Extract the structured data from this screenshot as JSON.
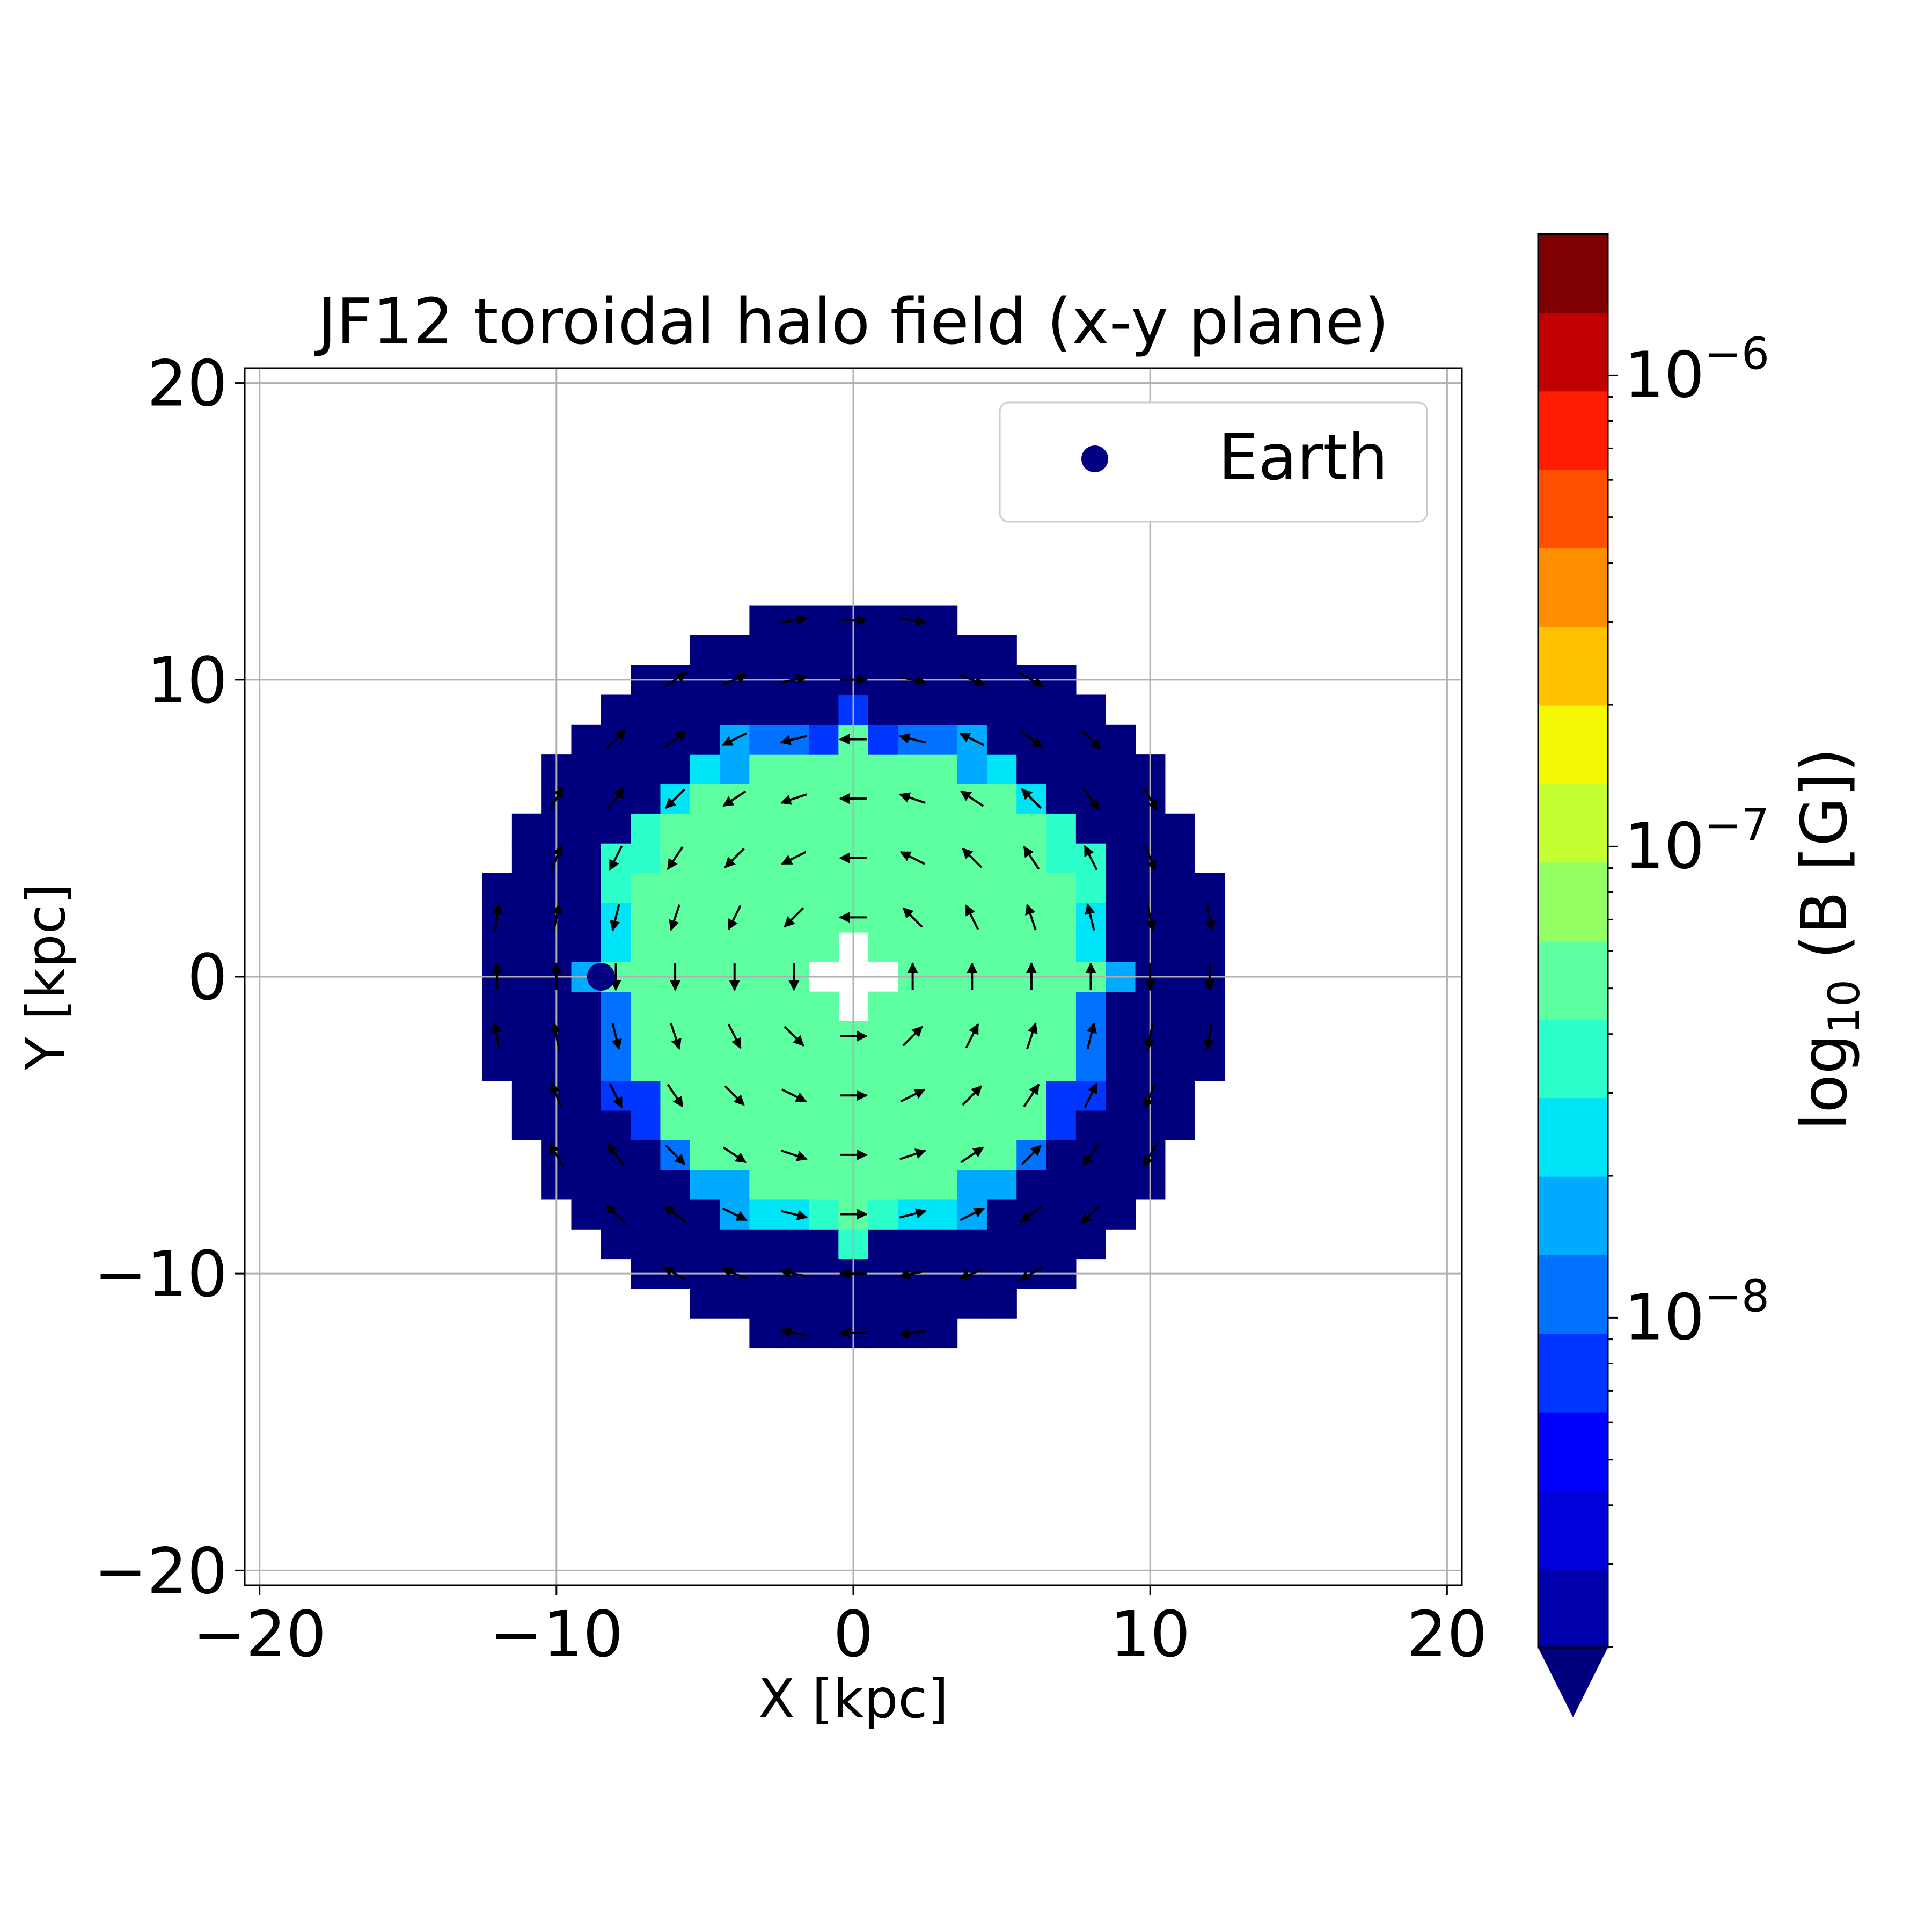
{
  "chart_data": {
    "type": "heatmap",
    "title": "JF12 toroidal halo field (x-y plane)",
    "xlabel": "X [kpc]",
    "ylabel": "Y [kpc]",
    "xlim": [
      -20.5,
      20.5
    ],
    "ylim": [
      -20.5,
      20.5
    ],
    "xticks": [
      -20,
      -10,
      0,
      10,
      20
    ],
    "yticks": [
      -20,
      -10,
      0,
      10,
      20
    ],
    "xtick_labels": [
      "−20",
      "−10",
      "0",
      "10",
      "20"
    ],
    "ytick_labels": [
      "−20",
      "−10",
      "0",
      "10",
      "20"
    ],
    "grid": true,
    "cell_size_kpc": 1.0,
    "grid_x_range": [
      -12.5,
      12.5
    ],
    "regions": {
      "outer_halo_radius_kpc": 12.5,
      "outer_halo_log10B": -8.7,
      "inner_disk_radius_kpc": 9.0,
      "inner_disk_log10B": -7.1,
      "transition_band_log10B": [
        -7.9,
        -7.3
      ],
      "excluded_center": "white plus-shaped hole around the origin"
    },
    "vector_field": {
      "description": "toroidal field arrows",
      "inner_region": "arrows circulate counter-clockwise (leftward above the plane, rightward below)",
      "outer_region": "arrows circulate clockwise (rightward above the plane, leftward below)",
      "spacing_kpc": 2.0
    },
    "markers": [
      {
        "name": "Earth",
        "x": -8.5,
        "y": 0.0,
        "color": "#000080"
      }
    ],
    "legend": {
      "position": "top-right",
      "entries": [
        "Earth"
      ]
    },
    "colorbar": {
      "label_main": "log",
      "label_sub": "10",
      "label_rest": " (B [G])",
      "scale": "log",
      "extend": "min",
      "range_log10": [
        -8.7,
        -5.7
      ],
      "levels": 18,
      "tick_values_log10": [
        -8,
        -7,
        -6
      ],
      "tick_base": "10",
      "tick_exponents": [
        "−8",
        "−7",
        "−6"
      ],
      "colors": [
        "#00007f",
        "#0000ac",
        "#0000da",
        "#0000ff",
        "#0036ff",
        "#0072ff",
        "#00aaff",
        "#00e4f8",
        "#2dffca",
        "#5effa0",
        "#94ff63",
        "#c4ff32",
        "#f4f802",
        "#ffc100",
        "#ff8d00",
        "#ff5000",
        "#ff1c00",
        "#c00000",
        "#7f0000"
      ]
    }
  }
}
